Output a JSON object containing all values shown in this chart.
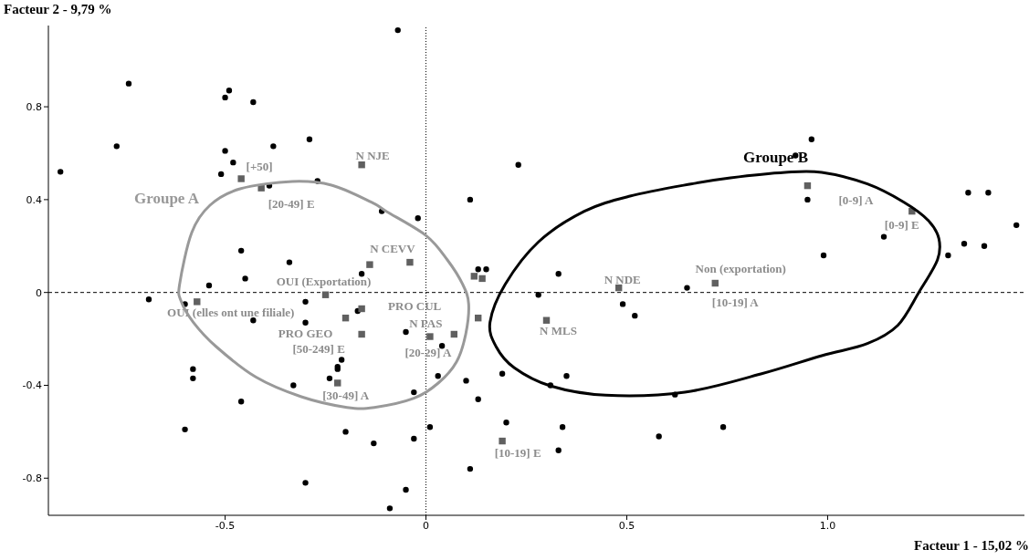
{
  "chart_data": {
    "type": "scatter",
    "xlabel": "Facteur 1  -  15,02 %",
    "ylabel": "Facteur 2  -  9,79 %",
    "xlim": [
      -0.94,
      1.49
    ],
    "ylim": [
      -0.96,
      1.15
    ],
    "xticks": [
      -0.5,
      0,
      0.5,
      {
        "value": 1,
        "label": "1.0"
      }
    ],
    "yticks": [
      -0.8,
      -0.4,
      0,
      0.4,
      0.8
    ],
    "grid": false,
    "legend": false,
    "ref_lines": [
      {
        "axis": "x",
        "value": 0,
        "color": "#000000",
        "line_style": "dotted"
      },
      {
        "axis": "y",
        "value": 0,
        "color": "#000000",
        "line_style": "dashed"
      }
    ],
    "series": [
      {
        "type": "scatter",
        "marker": "circle",
        "color": "#000000",
        "x": [
          -0.91,
          -0.74,
          -0.77,
          -0.49,
          -0.5,
          -0.43,
          -0.29,
          -0.38,
          -0.5,
          -0.48,
          -0.51,
          -0.27,
          -0.39,
          -0.46,
          -0.34,
          -0.45,
          -0.54,
          -0.16,
          -0.07,
          0.23,
          0.11,
          -0.11,
          -0.02,
          0.33,
          0.13,
          0.15,
          0.96,
          0.92,
          0.95,
          1.35,
          1.4,
          1.47,
          1.14,
          1.34,
          1.39,
          1.3,
          0.99,
          -0.69,
          -0.6,
          -0.3,
          -0.43,
          -0.3,
          -0.17,
          -0.21,
          -0.22,
          -0.22,
          -0.24,
          -0.33,
          -0.58,
          -0.58,
          -0.46,
          -0.6,
          -0.2,
          -0.13,
          -0.3,
          -0.05,
          0.28,
          0.65,
          0.49,
          0.52,
          0.04,
          0.03,
          -0.03,
          0.1,
          0.13,
          0.19,
          0.35,
          0.31,
          0.62,
          0.01,
          0.2,
          0.34,
          0.58,
          -0.03,
          0.33,
          0.11,
          -0.05,
          -0.09,
          0.74
        ],
        "values": [
          0.52,
          0.9,
          0.63,
          0.87,
          0.84,
          0.82,
          0.66,
          0.63,
          0.61,
          0.56,
          0.51,
          0.48,
          0.46,
          0.18,
          0.13,
          0.06,
          0.03,
          0.08,
          1.13,
          0.55,
          0.4,
          0.35,
          0.32,
          0.08,
          0.1,
          0.1,
          0.66,
          0.59,
          0.4,
          0.43,
          0.43,
          0.29,
          0.24,
          0.21,
          0.2,
          0.16,
          0.16,
          -0.03,
          -0.05,
          -0.04,
          -0.12,
          -0.13,
          -0.08,
          -0.29,
          -0.32,
          -0.33,
          -0.37,
          -0.4,
          -0.33,
          -0.37,
          -0.47,
          -0.59,
          -0.6,
          -0.65,
          -0.82,
          -0.17,
          -0.01,
          0.02,
          -0.05,
          -0.1,
          -0.23,
          -0.36,
          -0.43,
          -0.38,
          -0.46,
          -0.35,
          -0.36,
          -0.4,
          -0.44,
          -0.58,
          -0.56,
          -0.58,
          -0.62,
          -0.63,
          -0.68,
          -0.76,
          -0.85,
          -0.93,
          -0.58
        ]
      },
      {
        "type": "scatter",
        "marker": "square",
        "color": "#606060",
        "x": [
          -0.46,
          -0.41,
          -0.16,
          -0.14,
          -0.04,
          0.12,
          0.14,
          -0.25,
          -0.57,
          -0.16,
          -0.2,
          -0.16,
          0.01,
          0.07,
          0.13,
          -0.22,
          0.19,
          0.3,
          0.48,
          0.72,
          0.95,
          1.21
        ],
        "values": [
          0.49,
          0.45,
          0.55,
          0.12,
          0.13,
          0.07,
          0.06,
          -0.01,
          -0.04,
          -0.07,
          -0.11,
          -0.18,
          -0.19,
          -0.18,
          -0.11,
          -0.39,
          -0.64,
          -0.12,
          0.02,
          0.04,
          0.46,
          0.35
        ]
      }
    ],
    "annotations": [
      {
        "text": "[+50]",
        "x": -0.46,
        "y": 0.49
      },
      {
        "text": "[20-49] E",
        "x": -0.41,
        "y": 0.45
      },
      {
        "text": "N NJE",
        "x": -0.16,
        "y": 0.55
      },
      {
        "text": "N CEVV",
        "x": -0.04,
        "y": 0.13
      },
      {
        "text": "OUI (Exportation)",
        "x": -0.25,
        "y": -0.01
      },
      {
        "text": "OUI (elles ont une filiale)",
        "x": -0.57,
        "y": -0.04
      },
      {
        "text": "PRO CUL",
        "x": -0.16,
        "y": -0.07
      },
      {
        "text": "PRO GEO",
        "x": -0.2,
        "y": -0.11
      },
      {
        "text": "[50-249] E",
        "x": -0.16,
        "y": -0.18
      },
      {
        "text": "N PAS",
        "x": 0.07,
        "y": -0.18
      },
      {
        "text": "[20-29] A",
        "x": 0.01,
        "y": -0.19
      },
      {
        "text": "[30-49] A",
        "x": -0.22,
        "y": -0.39
      },
      {
        "text": "[10-19] E",
        "x": 0.19,
        "y": -0.64
      },
      {
        "text": "N MLS",
        "x": 0.3,
        "y": -0.12
      },
      {
        "text": "N NDE",
        "x": 0.48,
        "y": 0.02
      },
      {
        "text": "Non (exportation)",
        "x": 0.72,
        "y": 0.04
      },
      {
        "text": "[10-19] A",
        "x": 0.72,
        "y": 0.04
      },
      {
        "text": "[0-9] A",
        "x": 0.95,
        "y": 0.46
      },
      {
        "text": "[0-9] E",
        "x": 1.21,
        "y": 0.35
      },
      "Groupe A",
      "Groupe B"
    ]
  }
}
